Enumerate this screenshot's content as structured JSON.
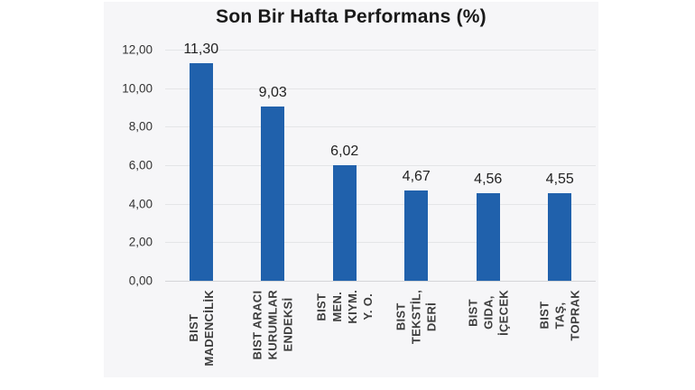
{
  "chart_data": {
    "type": "bar",
    "title": "Son Bir Hafta Performans (%)",
    "categories": [
      "BIST\nMADENCİLİK",
      "BIST ARACI\nKURUMLAR\nENDEKSİ",
      "BIST MEN.\nKIYM. Y. O.",
      "BIST TEKSTİL,\nDERİ",
      "BIST GIDA,\nİÇECEK",
      "BIST TAŞ,\nTOPRAK"
    ],
    "values": [
      11.3,
      9.03,
      6.02,
      4.67,
      4.56,
      4.55
    ],
    "value_labels": [
      "11,30",
      "9,03",
      "6,02",
      "4,67",
      "4,56",
      "4,55"
    ],
    "y_ticks": [
      "12,00",
      "10,00",
      "8,00",
      "6,00",
      "4,00",
      "2,00",
      "0,00"
    ],
    "ylim": [
      0,
      12
    ],
    "xlabel": "",
    "ylabel": "",
    "grid": true,
    "legend_position": "none",
    "decimal_separator": ","
  },
  "colors": {
    "bar": "#2061ac",
    "panel_bg": "#f6f6f8",
    "gridline": "#e4e5e7",
    "axis_line": "#d4d5d8",
    "title_text": "#1a1a1a"
  }
}
